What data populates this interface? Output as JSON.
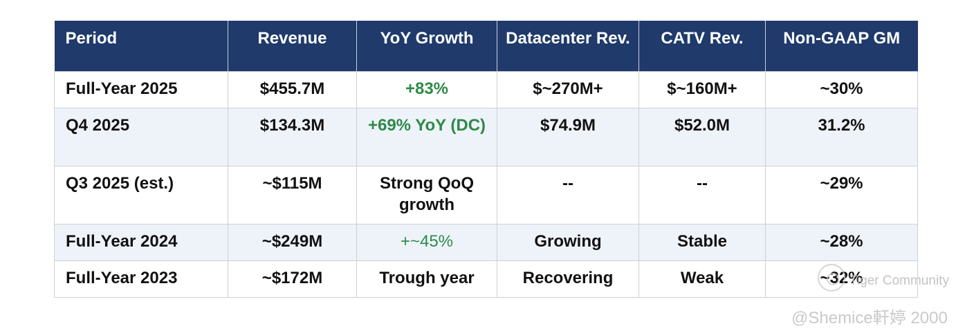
{
  "table": {
    "headers": [
      "Period",
      "Revenue",
      "YoY Growth",
      "Datacenter Rev.",
      "CATV Rev.",
      "Non-GAAP GM"
    ],
    "rows": [
      {
        "period": "Full-Year 2025",
        "revenue": "$455.7M",
        "yoy": "+83%",
        "datacenter": "$~270M+",
        "catv": "$~160M+",
        "gm": "~30%"
      },
      {
        "period": "Q4 2025",
        "revenue": "$134.3M",
        "yoy": "+69% YoY (DC)",
        "datacenter": "$74.9M",
        "catv": "$52.0M",
        "gm": "31.2%"
      },
      {
        "period": "Q3 2025 (est.)",
        "revenue": "~$115M",
        "yoy": "Strong QoQ growth",
        "datacenter": "--",
        "catv": "--",
        "gm": "~29%"
      },
      {
        "period": "Full-Year 2024",
        "revenue": "~$249M",
        "yoy": "+~45%",
        "datacenter": "Growing",
        "catv": "Stable",
        "gm": "~28%"
      },
      {
        "period": "Full-Year 2023",
        "revenue": "~$172M",
        "yoy": "Trough year",
        "datacenter": "Recovering",
        "catv": "Weak",
        "gm": "~32%"
      }
    ]
  },
  "watermark": {
    "community": "Tiger Community",
    "user": "@Shemice軒婷 2000"
  },
  "colors": {
    "header_bg": "#1f3a6b",
    "positive_green": "#2e8a46",
    "row_alt": "#eef3fa"
  }
}
